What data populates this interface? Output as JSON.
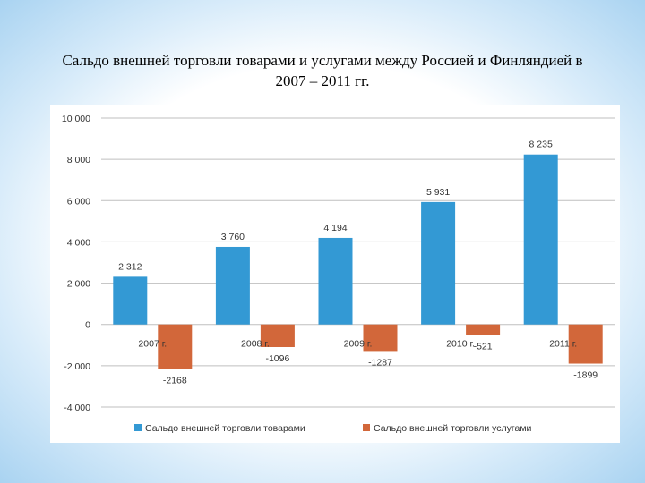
{
  "slide": {
    "title_line1": "Сальдо внешней торговли товарами и услугами между Россией и Финляндией в",
    "title_line2": "2007 – 2011 гг."
  },
  "chart_data": {
    "type": "bar",
    "title": "Сальдо внешней торговли товарами и услугами между Россией и Финляндией в 2007 – 2011 гг.",
    "categories": [
      "2007 г.",
      "2008 г.",
      "2009 г.",
      "2010 г.",
      "2011 г."
    ],
    "series": [
      {
        "name": "Сальдо внешней торговли товарами",
        "values": [
          2312,
          3760,
          4194,
          5931,
          8235
        ],
        "labels": [
          "2 312",
          "3 760",
          "4 194",
          "5 931",
          "8 235"
        ],
        "color": "#3399d4"
      },
      {
        "name": "Сальдо внешней торговли услугами",
        "values": [
          -2168,
          -1096,
          -1287,
          -521,
          -1899
        ],
        "labels": [
          "-2168",
          "-1096",
          "-1287",
          "-521",
          "-1899"
        ],
        "color": "#d2673a"
      }
    ],
    "ylim": [
      -4000,
      10000
    ],
    "yticks": [
      -4000,
      -2000,
      0,
      2000,
      4000,
      6000,
      8000,
      10000
    ],
    "ytick_labels": [
      "-4 000",
      "-2 000",
      "0",
      "2 000",
      "4 000",
      "6 000",
      "8 000",
      "10 000"
    ],
    "grid": true,
    "legend_position": "bottom",
    "xlabel": "",
    "ylabel": ""
  }
}
